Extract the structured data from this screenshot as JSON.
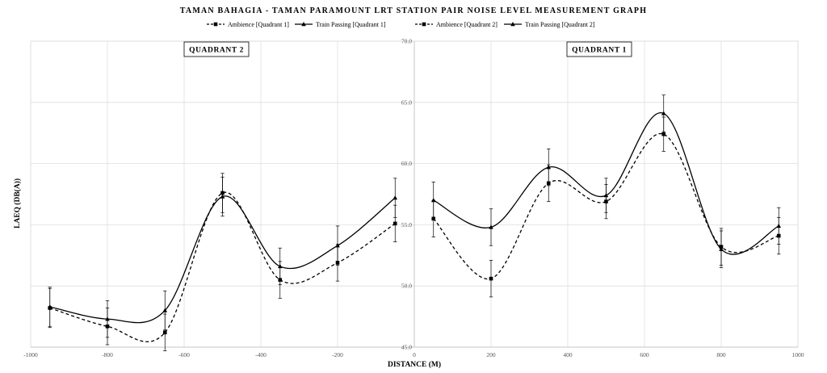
{
  "chart_data": {
    "type": "scatter",
    "title": "TAMAN BAHAGIA - TAMAN PARAMOUNT LRT STATION PAIR NOISE LEVEL MEASUREMENT GRAPH",
    "xlabel": "DISTANCE (M)",
    "ylabel": "LAEQ (DB(A))",
    "xlim": [
      -1000,
      1000
    ],
    "ylim": [
      45,
      70
    ],
    "x_ticks": [
      "-1000",
      "-800",
      "-600",
      "-400",
      "-200",
      "0",
      "200",
      "400",
      "600",
      "800",
      "1000"
    ],
    "y_ticks": [
      "45.0",
      "50.0",
      "55.0",
      "60.0",
      "65.0",
      "70.0"
    ],
    "grid": true,
    "legend_position": "top",
    "annotations": [
      "QUADRANT 2",
      "QUADRANT 1"
    ],
    "series": [
      {
        "name": "Ambience [Quadrant 1]",
        "line": "dashed",
        "marker": "square",
        "x": [
          50,
          200,
          350,
          500,
          650,
          800,
          950
        ],
        "y": [
          55.5,
          50.6,
          58.4,
          56.9,
          62.4,
          53.2,
          54.1
        ],
        "err": [
          1.5,
          1.5,
          1.5,
          1.4,
          1.4,
          1.5,
          1.5
        ]
      },
      {
        "name": "Train Passing [Quadrant 1]",
        "line": "solid",
        "marker": "triangle",
        "x": [
          50,
          200,
          350,
          500,
          650,
          800,
          950
        ],
        "y": [
          57.0,
          54.8,
          59.7,
          57.4,
          64.1,
          53.0,
          54.9
        ],
        "err": [
          1.5,
          1.5,
          1.5,
          1.4,
          1.5,
          1.5,
          1.5
        ]
      },
      {
        "name": "Ambience [Quadrant 2]",
        "line": "dashed",
        "marker": "square",
        "x": [
          -950,
          -800,
          -650,
          -500,
          -350,
          -200,
          -50
        ],
        "y": [
          48.2,
          46.7,
          46.2,
          57.6,
          50.5,
          51.9,
          55.1
        ],
        "err": [
          1.6,
          1.5,
          1.5,
          1.6,
          1.5,
          1.5,
          1.5
        ]
      },
      {
        "name": "Train Passing  [Quadrant 2]",
        "line": "solid",
        "marker": "triangle",
        "x": [
          -950,
          -800,
          -650,
          -500,
          -350,
          -200,
          -50
        ],
        "y": [
          48.3,
          47.3,
          48.0,
          57.3,
          51.6,
          53.3,
          57.2
        ],
        "err": [
          1.6,
          1.5,
          1.6,
          1.6,
          1.5,
          1.6,
          1.6
        ]
      }
    ]
  }
}
